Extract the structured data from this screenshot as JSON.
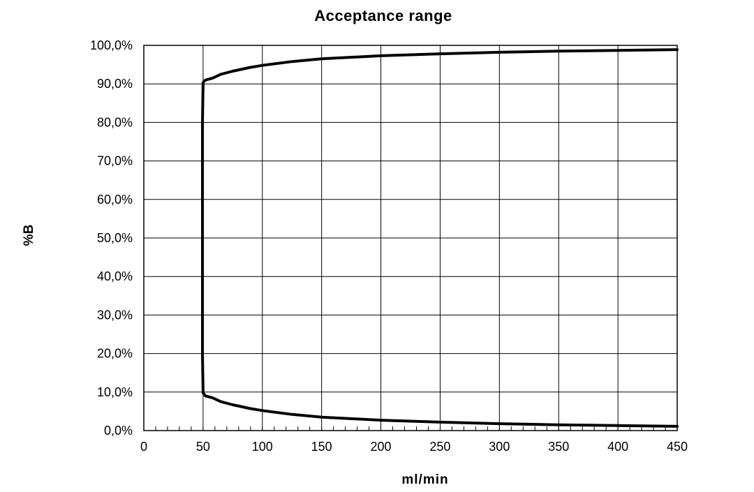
{
  "chart_data": {
    "type": "line",
    "title": "Acceptance range",
    "xlabel": "ml/min",
    "ylabel": "%B",
    "xlim": [
      0,
      450
    ],
    "ylim": [
      0,
      100
    ],
    "x_ticks": [
      0,
      50,
      100,
      150,
      200,
      250,
      300,
      350,
      400,
      450
    ],
    "x_tick_labels": [
      "0",
      "50",
      "100",
      "150",
      "200",
      "250",
      "300",
      "350",
      "400",
      "450"
    ],
    "y_ticks": [
      0,
      10,
      20,
      30,
      40,
      50,
      60,
      70,
      80,
      90,
      100
    ],
    "y_tick_labels": [
      "0,0%",
      "10,0%",
      "20,0%",
      "30,0%",
      "40,0%",
      "50,0%",
      "60,0%",
      "70,0%",
      "80,0%",
      "90,0%",
      "100,0%"
    ],
    "x_minor_step": 10,
    "grid": true,
    "series": [
      {
        "line_color": "#000000",
        "points": [
          [
            50,
            9.8
          ],
          [
            49.5,
            20
          ],
          [
            49.5,
            40
          ],
          [
            49.5,
            60
          ],
          [
            49.5,
            80
          ],
          [
            50,
            90.4
          ],
          [
            52,
            91.0
          ],
          [
            58,
            91.5
          ],
          [
            65,
            92.5
          ],
          [
            75,
            93.3
          ],
          [
            90,
            94.3
          ],
          [
            100,
            94.8
          ],
          [
            125,
            95.8
          ],
          [
            150,
            96.5
          ],
          [
            200,
            97.3
          ],
          [
            250,
            97.8
          ],
          [
            300,
            98.2
          ],
          [
            350,
            98.5
          ],
          [
            400,
            98.7
          ],
          [
            450,
            98.9
          ]
        ]
      },
      {
        "line_color": "#000000",
        "points": [
          [
            50,
            9.8
          ],
          [
            52,
            9.0
          ],
          [
            58,
            8.5
          ],
          [
            65,
            7.5
          ],
          [
            75,
            6.7
          ],
          [
            90,
            5.7
          ],
          [
            100,
            5.2
          ],
          [
            125,
            4.2
          ],
          [
            150,
            3.5
          ],
          [
            200,
            2.7
          ],
          [
            250,
            2.2
          ],
          [
            300,
            1.8
          ],
          [
            350,
            1.5
          ],
          [
            400,
            1.3
          ],
          [
            450,
            1.1
          ]
        ]
      }
    ]
  }
}
